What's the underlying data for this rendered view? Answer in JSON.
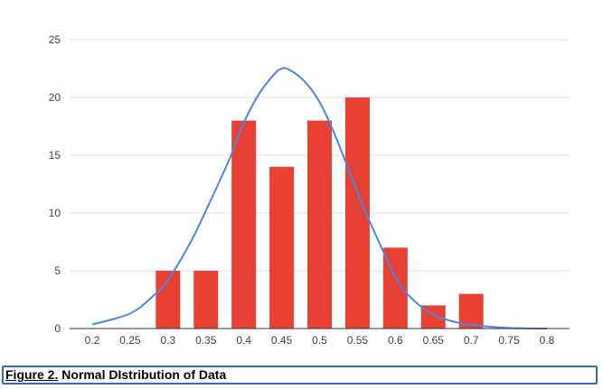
{
  "caption": {
    "label": "Figure 2.",
    "text": " Normal DIstribution of Data"
  },
  "colors": {
    "bar": "#e84134",
    "curve": "#4a86e8",
    "grid": "#dcdcdc",
    "axis": "#333333",
    "caption_border": "#2e6db5"
  },
  "chart_data": {
    "type": "bar",
    "title": "",
    "xlabel": "",
    "ylabel": "",
    "ylim": [
      0,
      25
    ],
    "xlim": [
      0.2,
      0.8
    ],
    "grid": true,
    "legend": "none",
    "x_ticks": [
      "0.2",
      "0.25",
      "0.3",
      "0.35",
      "0.4",
      "0.45",
      "0.5",
      "0.55",
      "0.6",
      "0.65",
      "0.7",
      "0.75",
      "0.8"
    ],
    "y_ticks": [
      "0",
      "5",
      "10",
      "15",
      "20",
      "25"
    ],
    "categories": [
      0.2,
      0.25,
      0.3,
      0.35,
      0.4,
      0.45,
      0.5,
      0.55,
      0.6,
      0.65,
      0.7,
      0.75,
      0.8
    ],
    "values": [
      0,
      0,
      5,
      5,
      18,
      14,
      18,
      20,
      7,
      2,
      3,
      0,
      0
    ],
    "curve": {
      "type": "line",
      "smooth": true,
      "points": [
        [
          0.2,
          0.35
        ],
        [
          0.25,
          1.3
        ],
        [
          0.28,
          2.8
        ],
        [
          0.3,
          4.2
        ],
        [
          0.33,
          7.5
        ],
        [
          0.35,
          10.2
        ],
        [
          0.38,
          14.5
        ],
        [
          0.4,
          17.8
        ],
        [
          0.42,
          20.3
        ],
        [
          0.44,
          22.0
        ],
        [
          0.45,
          22.5
        ],
        [
          0.46,
          22.4
        ],
        [
          0.48,
          21.4
        ],
        [
          0.5,
          19.6
        ],
        [
          0.52,
          16.8
        ],
        [
          0.55,
          11.8
        ],
        [
          0.57,
          8.7
        ],
        [
          0.6,
          4.5
        ],
        [
          0.62,
          2.7
        ],
        [
          0.65,
          1.2
        ],
        [
          0.68,
          0.55
        ],
        [
          0.7,
          0.3
        ],
        [
          0.75,
          0.05
        ],
        [
          0.8,
          0.0
        ]
      ]
    }
  }
}
